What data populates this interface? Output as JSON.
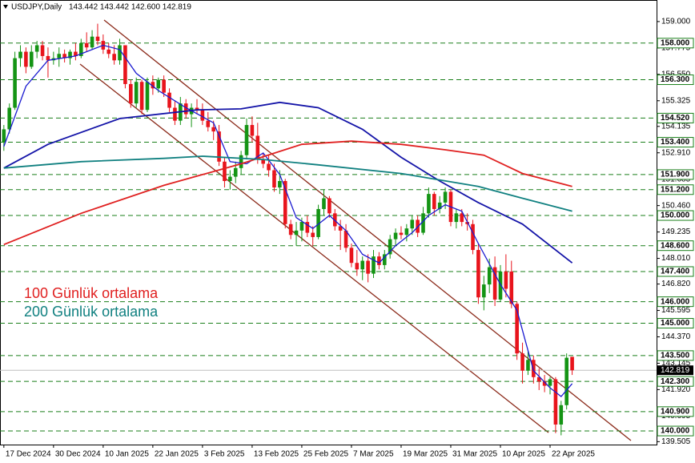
{
  "chart_data": {
    "type": "candlestick",
    "title": "USDJPY,Daily",
    "header_values": "143.442 143.442 142.600 142.819",
    "up_color": "#149414",
    "down_color": "#e8141c",
    "open": [
      153.4,
      154.0,
      155.0,
      157.3,
      157.6,
      156.9,
      157.6,
      157.9,
      157.4,
      157.2,
      157.3,
      157.5,
      157.3,
      157.6,
      157.4,
      158.0,
      157.8,
      158.3,
      158.1,
      157.7,
      157.5,
      157.2,
      157.9,
      156.1,
      155.2,
      156.2,
      154.9,
      156.2,
      155.9,
      156.3,
      155.7,
      155.0,
      154.4,
      155.2,
      154.7,
      155.0,
      154.9,
      154.4,
      154.1,
      153.9,
      152.5,
      151.6,
      151.8,
      152.2,
      152.8,
      154.2,
      153.7,
      152.6,
      152.4,
      152.1,
      151.3,
      151.6,
      149.6,
      149.1,
      149.3,
      149.7,
      149.2,
      149.0,
      150.3,
      150.8,
      150.1,
      149.5,
      149.3,
      148.5,
      147.8,
      147.5,
      147.9,
      147.3,
      148.1,
      147.7,
      148.2,
      148.9,
      149.2,
      149.1,
      149.4,
      149.8,
      149.2,
      150.1,
      151.0,
      150.3,
      150.6,
      151.1,
      149.7,
      150.1,
      149.7,
      149.6,
      148.4,
      146.2,
      146.8,
      147.6,
      146.1,
      147.4,
      147.4,
      145.9,
      143.6,
      142.8,
      143.3,
      142.5,
      142.3,
      142.1,
      142.4,
      140.3,
      141.2,
      143.442
    ],
    "high": [
      154.2,
      155.2,
      157.6,
      157.9,
      157.8,
      157.9,
      158.1,
      158.1,
      157.8,
      157.6,
      157.8,
      157.7,
      157.7,
      158.0,
      158.2,
      158.5,
      158.6,
      158.9,
      158.4,
      158.0,
      157.9,
      158.2,
      157.9,
      156.3,
      156.4,
      156.3,
      156.4,
      156.5,
      156.4,
      156.5,
      155.9,
      155.3,
      155.5,
      155.4,
      155.2,
      155.4,
      155.2,
      154.8,
      154.4,
      154.2,
      152.7,
      152.1,
      152.5,
      153.0,
      154.5,
      154.6,
      154.3,
      152.9,
      152.8,
      152.4,
      152.1,
      151.7,
      149.8,
      149.7,
      149.9,
      150.0,
      149.5,
      150.5,
      151.2,
      150.9,
      150.3,
      149.8,
      149.6,
      148.7,
      148.4,
      148.1,
      148.2,
      148.4,
      148.3,
      148.4,
      149.1,
      149.4,
      149.5,
      149.6,
      150.0,
      150.0,
      150.4,
      151.3,
      151.1,
      150.9,
      151.3,
      151.2,
      150.3,
      150.3,
      150.1,
      149.8,
      148.7,
      147.2,
      148.0,
      148.1,
      147.7,
      148.2,
      147.9,
      146.0,
      144.1,
      143.7,
      143.5,
      142.9,
      142.6,
      142.5,
      142.5,
      141.4,
      143.6,
      143.442
    ],
    "low": [
      153.0,
      153.8,
      154.9,
      156.9,
      156.6,
      156.8,
      157.3,
      157.2,
      156.4,
      157.0,
      156.9,
      157.1,
      157.0,
      157.2,
      157.3,
      157.6,
      157.7,
      157.9,
      157.5,
      157.3,
      157.0,
      157.0,
      155.9,
      155.0,
      155.0,
      154.7,
      154.8,
      155.6,
      155.7,
      155.5,
      154.8,
      154.2,
      154.2,
      154.5,
      154.1,
      154.7,
      154.2,
      153.9,
      153.5,
      152.3,
      151.3,
      151.2,
      151.5,
      151.9,
      152.6,
      153.4,
      152.4,
      152.2,
      151.8,
      151.1,
      151.0,
      149.4,
      148.9,
      148.6,
      148.8,
      149.0,
      148.6,
      148.9,
      150.0,
      149.9,
      149.3,
      148.4,
      148.3,
      147.6,
      147.2,
      147.0,
      146.9,
      147.1,
      147.5,
      147.5,
      148.0,
      148.6,
      148.9,
      148.8,
      149.1,
      149.0,
      149.1,
      149.9,
      150.0,
      150.1,
      150.3,
      149.5,
      149.4,
      149.5,
      149.3,
      148.2,
      145.9,
      145.6,
      146.4,
      145.8,
      146.0,
      146.2,
      145.7,
      143.3,
      142.2,
      142.6,
      142.2,
      141.9,
      141.8,
      141.7,
      139.9,
      139.8,
      141.0,
      142.6
    ],
    "close": [
      154.0,
      155.0,
      157.3,
      157.6,
      156.9,
      157.6,
      157.9,
      157.4,
      157.2,
      157.3,
      157.5,
      157.3,
      157.6,
      157.4,
      158.0,
      157.8,
      158.3,
      158.1,
      157.7,
      157.5,
      157.2,
      157.9,
      156.1,
      155.2,
      156.2,
      154.9,
      156.2,
      155.9,
      156.3,
      155.7,
      155.0,
      154.4,
      155.2,
      154.7,
      155.0,
      154.9,
      154.4,
      154.1,
      153.9,
      152.5,
      151.6,
      151.8,
      152.2,
      152.8,
      154.2,
      153.7,
      152.6,
      152.4,
      152.1,
      151.3,
      151.6,
      149.6,
      149.1,
      149.3,
      149.7,
      149.2,
      149.0,
      150.3,
      150.8,
      150.1,
      149.5,
      149.3,
      148.5,
      147.8,
      147.5,
      147.9,
      147.3,
      148.1,
      147.7,
      148.2,
      148.9,
      149.2,
      149.1,
      149.4,
      149.8,
      149.2,
      150.1,
      151.0,
      150.3,
      150.6,
      151.1,
      149.7,
      150.1,
      149.7,
      149.6,
      148.4,
      146.2,
      146.8,
      147.6,
      146.1,
      147.4,
      146.6,
      145.9,
      143.6,
      142.8,
      143.3,
      142.5,
      142.3,
      142.1,
      142.4,
      140.3,
      141.2,
      143.4,
      142.819
    ],
    "series": [
      {
        "color": "#1a1ad0",
        "x": [
          0,
          4,
          8,
          13,
          18,
          21,
          24,
          28,
          33,
          38,
          41,
          44,
          47,
          50,
          53,
          56,
          59,
          62,
          65,
          68,
          71,
          74,
          77,
          80,
          83,
          86,
          90,
          93,
          96,
          99,
          101,
          103
        ],
        "values": [
          153.2,
          156.0,
          157.2,
          157.4,
          157.9,
          157.7,
          156.6,
          155.8,
          155.0,
          154.3,
          152.5,
          152.4,
          152.9,
          151.9,
          149.9,
          149.4,
          150.0,
          149.3,
          148.2,
          147.8,
          148.6,
          149.2,
          150.0,
          150.5,
          150.2,
          148.7,
          146.8,
          145.6,
          142.8,
          142.0,
          141.6,
          142.2
        ]
      },
      {
        "color": "#1414a8",
        "x": [
          0,
          8,
          21,
          35,
          43,
          50,
          57,
          65,
          72,
          79,
          86,
          94,
          103
        ],
        "values": [
          152.2,
          153.3,
          154.5,
          154.9,
          154.95,
          155.25,
          155.0,
          154.0,
          152.7,
          151.6,
          150.6,
          149.6,
          147.8
        ]
      },
      {
        "name": "100 Günlük ortalama",
        "color": "#e02020",
        "x": [
          0,
          14,
          29,
          43,
          54,
          63,
          72,
          80,
          87,
          94,
          103
        ],
        "values": [
          148.65,
          150.1,
          151.4,
          152.4,
          153.3,
          153.45,
          153.3,
          153.05,
          152.8,
          151.95,
          151.35
        ]
      },
      {
        "name": "200 Günlük ortalama",
        "color": "#108080",
        "x": [
          0,
          14,
          29,
          36,
          47,
          57,
          72,
          86,
          94,
          103
        ],
        "values": [
          152.2,
          152.5,
          152.65,
          152.75,
          152.6,
          152.35,
          151.95,
          151.35,
          150.8,
          150.2
        ]
      }
    ],
    "xlim": [
      -0.7,
      118.3
    ],
    "ylim": [
      139.37,
      160.0
    ],
    "xticks": [
      {
        "value": 0,
        "label": "17 Dec 2024"
      },
      {
        "value": 9,
        "label": "30 Dec 2024"
      },
      {
        "value": 18,
        "label": "10 Jan 2025"
      },
      {
        "value": 27,
        "label": "22 Jan 2025"
      },
      {
        "value": 36,
        "label": "3 Feb 2025"
      },
      {
        "value": 45,
        "label": "13 Feb 2025"
      },
      {
        "value": 54,
        "label": "25 Feb 2025"
      },
      {
        "value": 63,
        "label": "7 Mar 2025"
      },
      {
        "value": 72,
        "label": "19 Mar 2025"
      },
      {
        "value": 81,
        "label": "31 Mar 2025"
      },
      {
        "value": 90,
        "label": "10 Apr 2025"
      },
      {
        "value": 99,
        "label": "22 Apr 2025"
      }
    ],
    "yticks": [
      {
        "value": 159,
        "label": "159.000"
      },
      {
        "value": 157.775,
        "label": "157.775"
      },
      {
        "value": 156.55,
        "label": "156.550"
      },
      {
        "value": 155.325,
        "label": "155.325"
      },
      {
        "value": 154.135,
        "label": "154.135"
      },
      {
        "value": 152.91,
        "label": "152.910"
      },
      {
        "value": 151.685,
        "label": "151.685"
      },
      {
        "value": 150.46,
        "label": "150.460"
      },
      {
        "value": 149.235,
        "label": "149.235"
      },
      {
        "value": 148.01,
        "label": "148.010"
      },
      {
        "value": 146.82,
        "label": "146.820"
      },
      {
        "value": 145.595,
        "label": "145.595"
      },
      {
        "value": 144.37,
        "label": "144.370"
      },
      {
        "value": 143.145,
        "label": "143.145"
      },
      {
        "value": 141.92,
        "label": "141.920"
      },
      {
        "value": 140.695,
        "label": "140.695"
      },
      {
        "value": 139.505,
        "label": "139.505"
      }
    ],
    "level_color": "#1a7f1a",
    "levels": [
      {
        "value": 158,
        "label": "158.000"
      },
      {
        "value": 156.3,
        "label": "156.300"
      },
      {
        "value": 154.52,
        "label": "154.520"
      },
      {
        "value": 153.4,
        "label": "153.400"
      },
      {
        "value": 151.9,
        "label": "151.900"
      },
      {
        "value": 151.2,
        "label": "151.200"
      },
      {
        "value": 150,
        "label": "150.000"
      },
      {
        "value": 148.6,
        "label": "148.600"
      },
      {
        "value": 147.4,
        "label": "147.400"
      },
      {
        "value": 146,
        "label": "146.000"
      },
      {
        "value": 145,
        "label": "145.000"
      },
      {
        "value": 143.5,
        "label": "143.500"
      },
      {
        "value": 142.3,
        "label": "142.300"
      },
      {
        "value": 140.9,
        "label": "140.900"
      },
      {
        "value": 140,
        "label": "140.000"
      }
    ],
    "current_price": {
      "value": 142.819,
      "label": "142.819"
    }
  }
}
